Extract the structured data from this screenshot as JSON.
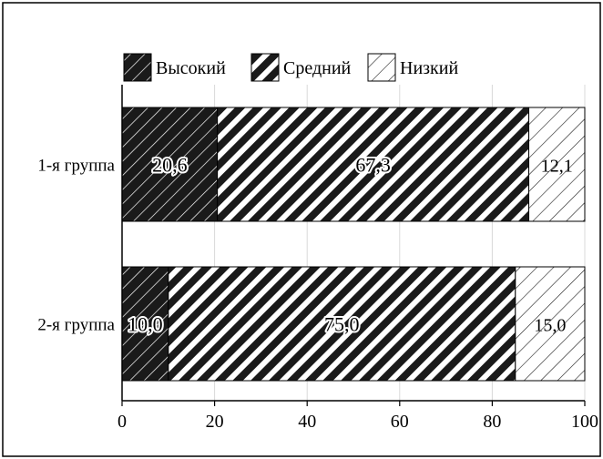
{
  "chart_data": {
    "type": "bar",
    "orientation": "horizontal",
    "stacked": true,
    "categories": [
      "1-я группа",
      "2-я группа"
    ],
    "series": [
      {
        "name": "Высокий",
        "values": [
          20.6,
          10.0
        ],
        "labels": [
          "20,6",
          "10,0"
        ],
        "pattern": "dense-diagonal-black"
      },
      {
        "name": "Средний",
        "values": [
          67.3,
          75.0
        ],
        "labels": [
          "67,3",
          "75,0"
        ],
        "pattern": "thick-diagonal-stripes"
      },
      {
        "name": "Низкий",
        "values": [
          12.1,
          15.0
        ],
        "labels": [
          "12,1",
          "15,0"
        ],
        "pattern": "thin-diagonal-lines"
      }
    ],
    "xlim": [
      0,
      100
    ],
    "xticks": [
      0,
      20,
      40,
      60,
      80,
      100
    ],
    "grid": true,
    "legend_position": "top",
    "title": "",
    "xlabel": "",
    "ylabel": ""
  }
}
